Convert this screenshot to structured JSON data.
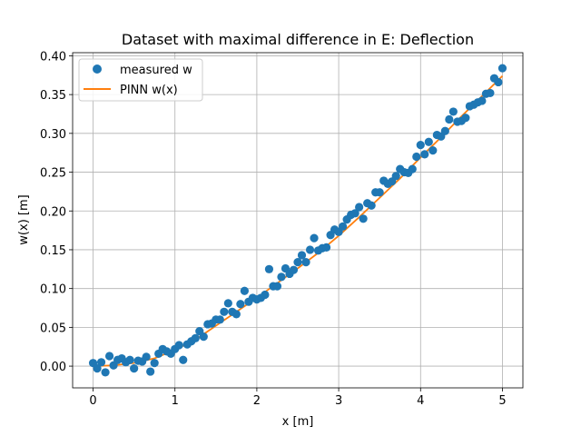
{
  "chart_data": {
    "type": "scatter",
    "title": "Dataset with maximal difference in E: Deflection",
    "xlabel": "x [m]",
    "ylabel": "w(x) [m]",
    "xlim": [
      -0.25,
      5.25
    ],
    "ylim": [
      -0.028,
      0.404
    ],
    "xticks": [
      "0",
      "1",
      "2",
      "3",
      "4",
      "5"
    ],
    "yticks": [
      "0.00",
      "0.05",
      "0.10",
      "0.15",
      "0.20",
      "0.25",
      "0.30",
      "0.35",
      "0.40"
    ],
    "grid": true,
    "legend_position": "top-left",
    "series": [
      {
        "name": "measured w",
        "kind": "scatter",
        "color": "#1f77b4",
        "x": [
          0.0,
          0.05,
          0.1,
          0.15,
          0.2,
          0.25,
          0.3,
          0.35,
          0.4,
          0.45,
          0.5,
          0.55,
          0.6,
          0.65,
          0.7,
          0.75,
          0.8,
          0.85,
          0.9,
          0.95,
          1.0,
          1.05,
          1.1,
          1.15,
          1.2,
          1.25,
          1.3,
          1.35,
          1.4,
          1.45,
          1.5,
          1.55,
          1.6,
          1.65,
          1.7,
          1.75,
          1.8,
          1.85,
          1.9,
          1.95,
          2.0,
          2.05,
          2.1,
          2.15,
          2.2,
          2.25,
          2.3,
          2.35,
          2.4,
          2.45,
          2.5,
          2.55,
          2.6,
          2.65,
          2.7,
          2.75,
          2.8,
          2.85,
          2.9,
          2.95,
          3.0,
          3.05,
          3.1,
          3.15,
          3.2,
          3.25,
          3.3,
          3.35,
          3.4,
          3.45,
          3.5,
          3.55,
          3.6,
          3.65,
          3.7,
          3.75,
          3.8,
          3.85,
          3.9,
          3.95,
          4.0,
          4.05,
          4.1,
          4.15,
          4.2,
          4.25,
          4.3,
          4.35,
          4.4,
          4.45,
          4.5,
          4.55,
          4.6,
          4.65,
          4.7,
          4.75,
          4.8,
          4.85,
          4.9,
          4.95,
          5.0
        ],
        "y": [
          0.004,
          -0.003,
          0.005,
          -0.008,
          0.013,
          0.001,
          0.008,
          0.01,
          0.005,
          0.008,
          -0.003,
          0.007,
          0.006,
          0.012,
          -0.007,
          0.004,
          0.016,
          0.022,
          0.019,
          0.016,
          0.022,
          0.027,
          0.008,
          0.028,
          0.032,
          0.036,
          0.045,
          0.038,
          0.054,
          0.055,
          0.06,
          0.06,
          0.07,
          0.081,
          0.07,
          0.067,
          0.08,
          0.097,
          0.083,
          0.088,
          0.086,
          0.088,
          0.092,
          0.125,
          0.103,
          0.103,
          0.115,
          0.126,
          0.119,
          0.124,
          0.134,
          0.143,
          0.134,
          0.15,
          0.165,
          0.149,
          0.152,
          0.153,
          0.169,
          0.176,
          0.173,
          0.18,
          0.189,
          0.195,
          0.197,
          0.205,
          0.19,
          0.21,
          0.207,
          0.224,
          0.224,
          0.239,
          0.235,
          0.238,
          0.245,
          0.254,
          0.25,
          0.249,
          0.254,
          0.27,
          0.285,
          0.273,
          0.289,
          0.278,
          0.298,
          0.296,
          0.303,
          0.318,
          0.328,
          0.315,
          0.316,
          0.32,
          0.335,
          0.337,
          0.34,
          0.342,
          0.351,
          0.352,
          0.371,
          0.366,
          0.384
        ]
      },
      {
        "name": "PINN w(x)",
        "kind": "line",
        "color": "#ff7f0e",
        "x": [
          0.0,
          0.25,
          0.5,
          0.75,
          1.0,
          1.25,
          1.5,
          1.75,
          2.0,
          2.25,
          2.5,
          2.75,
          3.0,
          3.25,
          3.5,
          3.75,
          4.0,
          4.25,
          4.5,
          4.75,
          5.0
        ],
        "y": [
          0.0,
          0.001,
          0.004,
          0.01,
          0.021,
          0.034,
          0.052,
          0.07,
          0.088,
          0.107,
          0.126,
          0.146,
          0.168,
          0.192,
          0.217,
          0.242,
          0.269,
          0.295,
          0.322,
          0.348,
          0.374
        ]
      }
    ]
  }
}
